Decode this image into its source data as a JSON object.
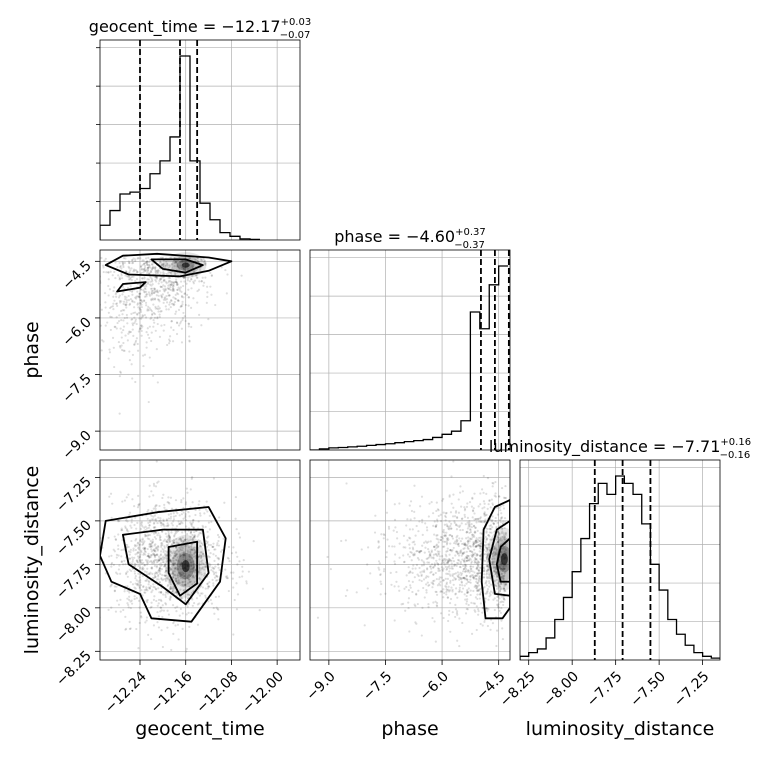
{
  "chart_data": {
    "type": "corner",
    "parameters": [
      {
        "key": "geocent_time",
        "axis_label": "geocent_time",
        "ticks": [
          -12.24,
          -12.16,
          -12.08,
          -12.0
        ],
        "tick_labels": [
          "−12.24",
          "−12.16",
          "−12.08",
          "−12.00"
        ],
        "range": [
          -12.31,
          -11.96
        ],
        "title": {
          "prefix": "geocent_time = −12.17",
          "sup": "+0.03",
          "sub": "−0.07"
        },
        "quantiles": [
          -12.24,
          -12.17,
          -12.14
        ],
        "hist": {
          "edges": [
            -12.31,
            -12.2925,
            -12.275,
            -12.2575,
            -12.24,
            -12.2225,
            -12.205,
            -12.1875,
            -12.17,
            -12.1525,
            -12.135,
            -12.1175,
            -12.1,
            -12.0825,
            -12.065,
            -12.0475,
            -12.03
          ],
          "counts": [
            0.08,
            0.16,
            0.25,
            0.26,
            0.28,
            0.36,
            0.43,
            0.56,
            1.0,
            0.43,
            0.2,
            0.11,
            0.04,
            0.02,
            0.006,
            0.003
          ]
        }
      },
      {
        "key": "phase",
        "axis_label": "phase",
        "ticks": [
          -9.0,
          -7.5,
          -6.0,
          -4.5
        ],
        "tick_labels": [
          "−9.0",
          "−7.5",
          "−6.0",
          "−4.5"
        ],
        "range": [
          -9.5,
          -4.2
        ],
        "title": {
          "prefix": "phase = −4.60",
          "sup": "+0.37",
          "sub": "−0.37"
        },
        "quantiles": [
          -4.97,
          -4.6,
          -4.23
        ],
        "hist": {
          "edges": [
            -9.5,
            -9.25,
            -9.0,
            -8.75,
            -8.5,
            -8.25,
            -8.0,
            -7.75,
            -7.5,
            -7.25,
            -7.0,
            -6.75,
            -6.5,
            -6.25,
            -6.0,
            -5.75,
            -5.5,
            -5.25,
            -5.0,
            -4.75,
            -4.5,
            -4.25
          ],
          "counts": [
            0.0,
            0.005,
            0.01,
            0.012,
            0.015,
            0.018,
            0.022,
            0.026,
            0.03,
            0.035,
            0.04,
            0.045,
            0.05,
            0.06,
            0.075,
            0.09,
            0.14,
            0.66,
            0.58,
            0.79,
            0.88
          ]
        }
      },
      {
        "key": "luminosity_distance",
        "axis_label": "luminosity_distance",
        "ticks": [
          -8.25,
          -8.0,
          -7.75,
          -7.5,
          -7.25
        ],
        "tick_labels": [
          "−8.25",
          "−8.00",
          "−7.75",
          "−7.50",
          "−7.25"
        ],
        "range": [
          -8.3,
          -7.15
        ],
        "title": {
          "prefix": "luminosity_distance = −7.71",
          "sup": "+0.16",
          "sub": "−0.16"
        },
        "quantiles": [
          -7.87,
          -7.71,
          -7.55
        ],
        "hist": {
          "edges": [
            -8.3,
            -8.25,
            -8.2,
            -8.15,
            -8.1,
            -8.05,
            -8.0,
            -7.95,
            -7.9,
            -7.85,
            -7.8,
            -7.75,
            -7.7,
            -7.65,
            -7.6,
            -7.55,
            -7.5,
            -7.45,
            -7.4,
            -7.35,
            -7.3,
            -7.25,
            -7.2,
            -7.15
          ],
          "counts": [
            0.02,
            0.04,
            0.06,
            0.12,
            0.22,
            0.34,
            0.48,
            0.66,
            0.85,
            0.96,
            0.9,
            1.0,
            0.96,
            0.9,
            0.74,
            0.52,
            0.38,
            0.22,
            0.14,
            0.08,
            0.04,
            0.02,
            0.01
          ]
        }
      }
    ],
    "pairs": [
      {
        "x": "geocent_time",
        "y": "phase",
        "mode": {
          "x": -12.16,
          "y": -4.6
        },
        "samples": {
          "n": 900,
          "x_mean": -12.2,
          "x_sd": 0.045,
          "y_mean": -5.4,
          "y_sd": 1.1
        },
        "contours": [
          [
            [
              -12.27,
              -4.35
            ],
            [
              -12.21,
              -4.3
            ],
            [
              -12.12,
              -4.4
            ],
            [
              -12.08,
              -4.5
            ],
            [
              -12.12,
              -4.75
            ],
            [
              -12.17,
              -4.9
            ],
            [
              -12.26,
              -4.85
            ],
            [
              -12.3,
              -4.6
            ]
          ],
          [
            [
              -12.22,
              -4.45
            ],
            [
              -12.16,
              -4.45
            ],
            [
              -12.13,
              -4.6
            ],
            [
              -12.16,
              -4.8
            ],
            [
              -12.2,
              -4.7
            ]
          ],
          [
            [
              -12.27,
              -5.1
            ],
            [
              -12.23,
              -5.05
            ],
            [
              -12.24,
              -5.2
            ],
            [
              -12.28,
              -5.3
            ]
          ]
        ]
      },
      {
        "x": "geocent_time",
        "y": "luminosity_distance",
        "mode": {
          "x": -12.16,
          "y": -7.76
        },
        "samples": {
          "n": 1400,
          "x_mean": -12.19,
          "x_sd": 0.05,
          "y_mean": -7.72,
          "y_sd": 0.17
        },
        "contours": [
          [
            [
              -12.3,
              -7.5
            ],
            [
              -12.21,
              -7.45
            ],
            [
              -12.12,
              -7.42
            ],
            [
              -12.09,
              -7.6
            ],
            [
              -12.1,
              -7.85
            ],
            [
              -12.15,
              -8.08
            ],
            [
              -12.22,
              -8.06
            ],
            [
              -12.24,
              -7.92
            ],
            [
              -12.29,
              -7.85
            ],
            [
              -12.31,
              -7.7
            ]
          ],
          [
            [
              -12.27,
              -7.58
            ],
            [
              -12.2,
              -7.55
            ],
            [
              -12.13,
              -7.55
            ],
            [
              -12.12,
              -7.8
            ],
            [
              -12.16,
              -7.98
            ],
            [
              -12.2,
              -7.88
            ],
            [
              -12.26,
              -7.75
            ]
          ],
          [
            [
              -12.19,
              -7.65
            ],
            [
              -12.14,
              -7.62
            ],
            [
              -12.14,
              -7.86
            ],
            [
              -12.17,
              -7.93
            ],
            [
              -12.19,
              -7.8
            ]
          ]
        ]
      },
      {
        "x": "phase",
        "y": "luminosity_distance",
        "mode": {
          "x": -4.35,
          "y": -7.72
        },
        "samples": {
          "n": 1400,
          "x_mean": -5.0,
          "x_sd": 0.9,
          "y_mean": -7.72,
          "y_sd": 0.17
        },
        "contours": [
          [
            [
              -4.2,
              -7.38
            ],
            [
              -4.6,
              -7.42
            ],
            [
              -4.9,
              -7.55
            ],
            [
              -4.95,
              -7.85
            ],
            [
              -4.85,
              -8.06
            ],
            [
              -4.4,
              -8.06
            ],
            [
              -4.2,
              -8.0
            ]
          ],
          [
            [
              -4.2,
              -7.5
            ],
            [
              -4.55,
              -7.55
            ],
            [
              -4.75,
              -7.72
            ],
            [
              -4.6,
              -7.92
            ],
            [
              -4.2,
              -7.93
            ]
          ],
          [
            [
              -4.2,
              -7.6
            ],
            [
              -4.45,
              -7.65
            ],
            [
              -4.55,
              -7.75
            ],
            [
              -4.45,
              -7.85
            ],
            [
              -4.2,
              -7.85
            ]
          ]
        ]
      }
    ],
    "style": {
      "line_color": "#000000",
      "quantile_style": "dashed",
      "grid": true,
      "grid_color": "#b0b0b0",
      "point_color": "#000000",
      "density_cmap": "greys"
    }
  }
}
